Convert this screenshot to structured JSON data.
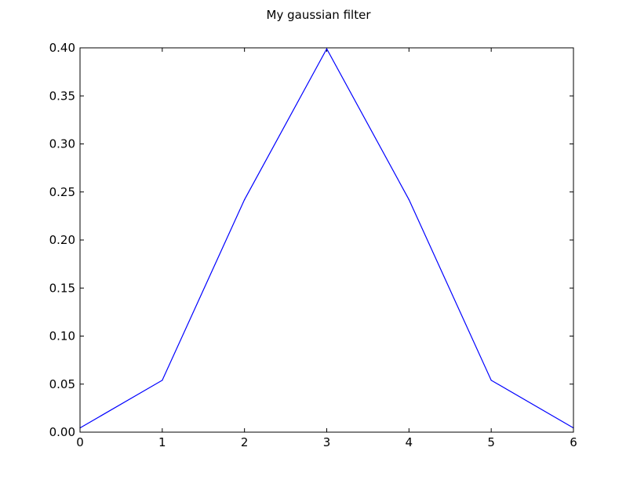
{
  "chart_data": {
    "type": "line",
    "title": "My gaussian filter",
    "xlabel": "",
    "ylabel": "",
    "x": [
      0,
      1,
      2,
      3,
      4,
      5,
      6
    ],
    "series": [
      {
        "values": [
          0.0044,
          0.054,
          0.242,
          0.399,
          0.242,
          0.054,
          0.0044
        ],
        "color": "#0000ff"
      }
    ],
    "xlim": [
      0,
      6
    ],
    "ylim": [
      0.0,
      0.4
    ],
    "xticks": [
      0,
      1,
      2,
      3,
      4,
      5,
      6
    ],
    "xtick_labels": [
      "0",
      "1",
      "2",
      "3",
      "4",
      "5",
      "6"
    ],
    "yticks": [
      0.0,
      0.05,
      0.1,
      0.15,
      0.2,
      0.25,
      0.3,
      0.35,
      0.4
    ],
    "ytick_labels": [
      "0.00",
      "0.05",
      "0.10",
      "0.15",
      "0.20",
      "0.25",
      "0.30",
      "0.35",
      "0.40"
    ],
    "grid": false,
    "legend": "none"
  }
}
